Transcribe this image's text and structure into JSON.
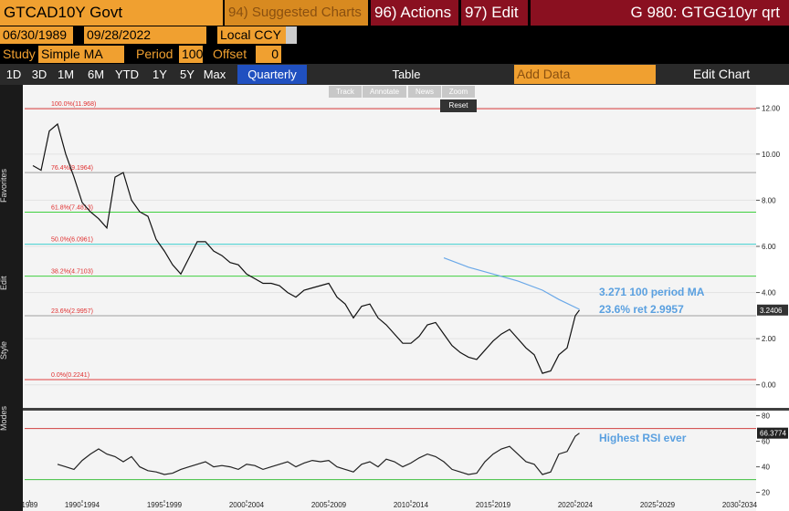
{
  "header": {
    "security": "GTCAD10Y Govt",
    "suggested": "94) Suggested Charts",
    "actions": "96) Actions",
    "edit": "97) Edit",
    "function": "G 980: GTGG10yr qrt"
  },
  "controls": {
    "start_date": "06/30/1989",
    "end_date": "09/28/2022",
    "currency": "Local CCY",
    "study_label": "Study",
    "study": "Simple MA",
    "period_label": "Period",
    "period": "100",
    "offset_label": "Offset",
    "offset": "0"
  },
  "tabs": {
    "ranges": [
      "1D",
      "3D",
      "1M",
      "6M",
      "YTD",
      "1Y",
      "5Y",
      "Max"
    ],
    "frequency": "Quarterly",
    "table": "Table",
    "add_data": "Add Data",
    "edit_chart": "Edit Chart"
  },
  "chart_tools": {
    "buttons": [
      "Track",
      "Annotate",
      "News",
      "Zoom"
    ],
    "reset": "Reset"
  },
  "sidebar": {
    "sections": [
      "Favorites",
      "Edit",
      "Style",
      "Modes"
    ]
  },
  "chart_data": [
    {
      "type": "line",
      "xlim": [
        1989,
        2033.5
      ],
      "ylim": [
        -1,
        13
      ],
      "grid": true,
      "yticks": [
        {
          "value": 12,
          "label": "12.00"
        },
        {
          "value": 10,
          "label": "10.00"
        },
        {
          "value": 8,
          "label": "8.00"
        },
        {
          "value": 6,
          "label": "6.00"
        },
        {
          "value": 4,
          "label": "4.00"
        },
        {
          "value": 2,
          "label": "2.00"
        },
        {
          "value": 0,
          "label": "0.00"
        }
      ],
      "last_value": 3.2406,
      "levels": [
        {
          "value": 11.968,
          "label": "100.0%(11.968)",
          "color": "#e04040"
        },
        {
          "value": 9.1964,
          "label": "76.4%(9.1964)",
          "color": "#a0a0a0"
        },
        {
          "value": 7.4813,
          "label": "61.8%(7.4813)",
          "color": "#40d040"
        },
        {
          "value": 6.0961,
          "label": "50.0%(6.0961)",
          "color": "#40d0d0"
        },
        {
          "value": 4.7103,
          "label": "38.2%(4.7103)",
          "color": "#40d040"
        },
        {
          "value": 2.9957,
          "label": "23.6%(2.9957)",
          "color": "#a0a0a0"
        },
        {
          "value": 0.2241,
          "label": "0.0%(0.2241)",
          "color": "#e04040"
        }
      ],
      "annotations": [
        "3.271 100 period MA",
        "23.6% ret 2.9957"
      ],
      "series": [
        {
          "name": "GTCAD10Y Govt",
          "color": "#111111",
          "x": [
            1989.5,
            1990,
            1990.5,
            1991,
            1991.5,
            1992,
            1992.5,
            1993,
            1993.5,
            1994,
            1994.5,
            1995,
            1995.5,
            1996,
            1996.5,
            1997,
            1997.5,
            1998,
            1998.5,
            1999,
            1999.5,
            2000,
            2000.5,
            2001,
            2001.5,
            2002,
            2002.5,
            2003,
            2003.5,
            2004,
            2004.5,
            2005,
            2005.5,
            2006,
            2006.5,
            2007,
            2007.5,
            2008,
            2008.5,
            2009,
            2009.5,
            2010,
            2010.5,
            2011,
            2011.5,
            2012,
            2012.5,
            2013,
            2013.5,
            2014,
            2014.5,
            2015,
            2015.5,
            2016,
            2016.5,
            2017,
            2017.5,
            2018,
            2018.5,
            2019,
            2019.5,
            2020,
            2020.5,
            2021,
            2021.5,
            2022,
            2022.5,
            2022.75
          ],
          "values": [
            9.5,
            9.3,
            11.0,
            11.3,
            10.0,
            9.0,
            7.9,
            7.5,
            7.2,
            6.8,
            9.0,
            9.2,
            8.0,
            7.5,
            7.3,
            6.3,
            5.8,
            5.2,
            4.8,
            5.5,
            6.2,
            6.2,
            5.8,
            5.6,
            5.3,
            5.2,
            4.8,
            4.6,
            4.4,
            4.4,
            4.3,
            4.0,
            3.8,
            4.1,
            4.2,
            4.3,
            4.4,
            3.8,
            3.5,
            2.9,
            3.4,
            3.5,
            2.9,
            2.6,
            2.2,
            1.8,
            1.8,
            2.1,
            2.6,
            2.7,
            2.2,
            1.7,
            1.4,
            1.2,
            1.1,
            1.5,
            1.9,
            2.2,
            2.4,
            2.0,
            1.6,
            1.3,
            0.5,
            0.6,
            1.3,
            1.6,
            3.0,
            3.24
          ]
        },
        {
          "name": "100 period MA",
          "color": "#6aa8e8",
          "x": [
            2014.5,
            2016,
            2017.5,
            2019,
            2020.5,
            2021.5,
            2022.75
          ],
          "values": [
            5.5,
            5.1,
            4.8,
            4.5,
            4.1,
            3.7,
            3.27
          ]
        }
      ]
    },
    {
      "type": "line",
      "xlim": [
        1989,
        2033.5
      ],
      "ylim": [
        14,
        84
      ],
      "yticks": [
        20,
        40,
        60,
        80
      ],
      "last_value": 66.3774,
      "levels": [
        {
          "value": 70,
          "color": "#d04040"
        },
        {
          "value": 30,
          "color": "#40c040"
        }
      ],
      "annotations": [
        "Highest RSI ever"
      ],
      "xticks": [
        {
          "value": 1989.3,
          "label": "1989"
        },
        {
          "value": 1992.5,
          "label": "1990-1994"
        },
        {
          "value": 1997.5,
          "label": "1995-1999"
        },
        {
          "value": 2002.5,
          "label": "2000-2004"
        },
        {
          "value": 2007.5,
          "label": "2005-2009"
        },
        {
          "value": 2012.5,
          "label": "2010-2014"
        },
        {
          "value": 2017.5,
          "label": "2015-2019"
        },
        {
          "value": 2022.5,
          "label": "2020-2024"
        },
        {
          "value": 2027.5,
          "label": "2025-2029"
        },
        {
          "value": 2032.5,
          "label": "2030-2034"
        }
      ],
      "series": [
        {
          "name": "RSI",
          "color": "#222222",
          "x": [
            1991,
            1991.5,
            1992,
            1992.5,
            1993,
            1993.5,
            1994,
            1994.5,
            1995,
            1995.5,
            1996,
            1996.5,
            1997,
            1997.5,
            1998,
            1998.5,
            1999,
            1999.5,
            2000,
            2000.5,
            2001,
            2001.5,
            2002,
            2002.5,
            2003,
            2003.5,
            2004,
            2004.5,
            2005,
            2005.5,
            2006,
            2006.5,
            2007,
            2007.5,
            2008,
            2008.5,
            2009,
            2009.5,
            2010,
            2010.5,
            2011,
            2011.5,
            2012,
            2012.5,
            2013,
            2013.5,
            2014,
            2014.5,
            2015,
            2015.5,
            2016,
            2016.5,
            2017,
            2017.5,
            2018,
            2018.5,
            2019,
            2019.5,
            2020,
            2020.5,
            2021,
            2021.5,
            2022,
            2022.5,
            2022.75
          ],
          "values": [
            42,
            40,
            38,
            45,
            50,
            54,
            50,
            48,
            44,
            48,
            40,
            37,
            36,
            34,
            35,
            38,
            40,
            42,
            44,
            40,
            41,
            40,
            38,
            42,
            41,
            38,
            40,
            42,
            44,
            40,
            43,
            45,
            44,
            45,
            40,
            38,
            36,
            42,
            44,
            40,
            46,
            44,
            40,
            43,
            47,
            50,
            48,
            44,
            38,
            36,
            34,
            35,
            44,
            50,
            54,
            56,
            50,
            44,
            42,
            34,
            36,
            50,
            52,
            64,
            66.3774
          ]
        }
      ]
    }
  ]
}
